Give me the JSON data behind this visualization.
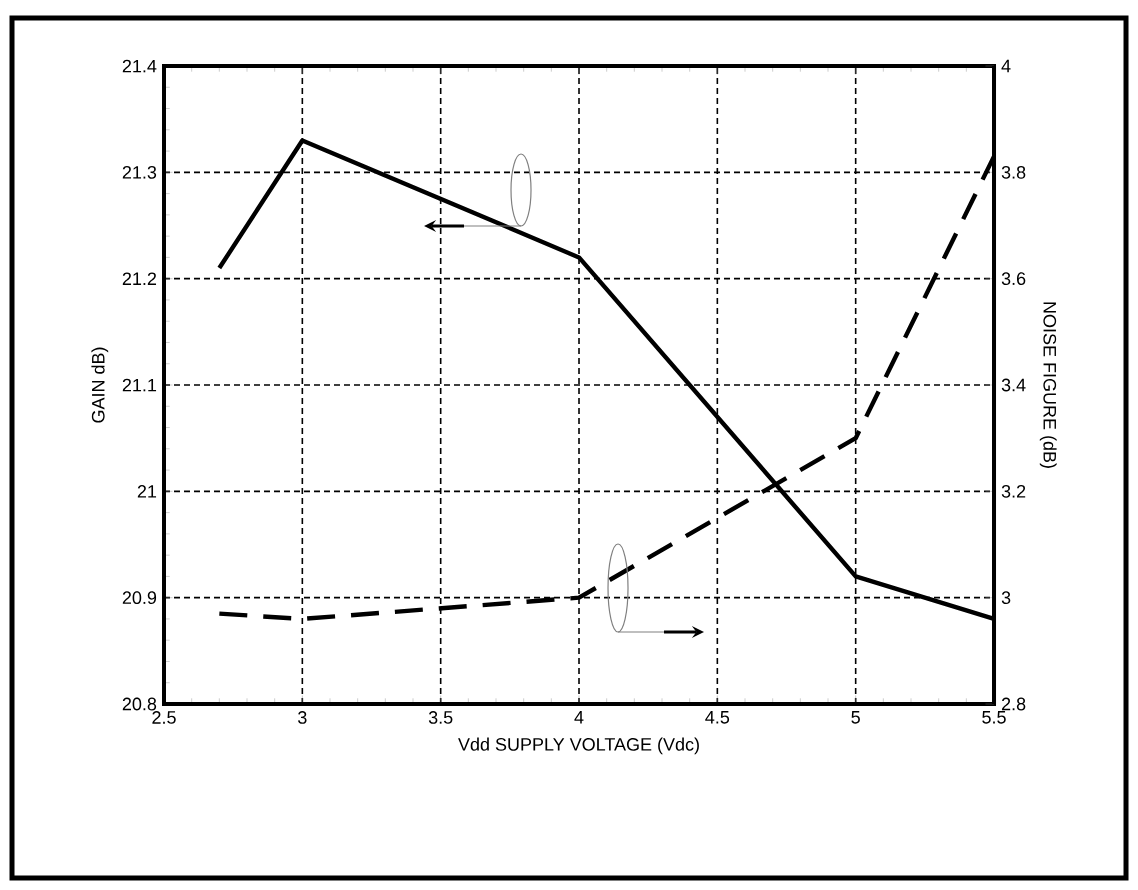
{
  "chart_data": {
    "type": "line",
    "xlabel": "Vdd SUPPLY VOLTAGE (Vdc)",
    "ylabel": "GAIN  dB)",
    "y2label": "NOISE FIGURE (dB)",
    "grid": true,
    "marker": "none",
    "xlim": [
      2.5,
      5.5
    ],
    "xticks": [
      2.5,
      3,
      3.5,
      4,
      4.5,
      5,
      5.5
    ],
    "ylim": [
      20.8,
      21.4
    ],
    "yticks": [
      20.8,
      20.9,
      21,
      21.1,
      21.2,
      21.3,
      21.4
    ],
    "y2lim": [
      2.8,
      4
    ],
    "y2ticks": [
      2.8,
      3,
      3.2,
      3.4,
      3.6,
      3.8,
      4
    ],
    "series": [
      {
        "color": "#000000",
        "line_style": "solid",
        "x": [
          2.7,
          3,
          4,
          5,
          5.5
        ],
        "values": [
          21.21,
          21.33,
          21.22,
          20.92,
          20.88
        ]
      },
      {
        "color": "#000000",
        "line_style": "dashed",
        "axis": "y2",
        "x": [
          2.7,
          3,
          4,
          5,
          5.5
        ],
        "values": [
          2.97,
          2.96,
          3.0,
          3.3,
          3.83
        ]
      }
    ]
  }
}
